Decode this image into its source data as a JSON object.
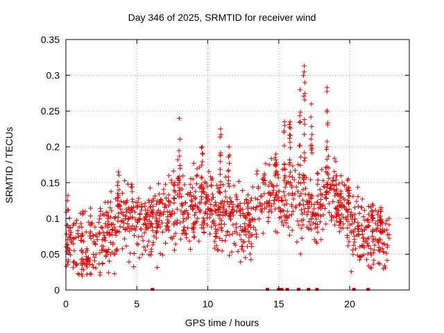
{
  "chart_data": {
    "type": "scatter",
    "title": "Day 346 of 2025, SRMTID for receiver wind",
    "xlabel": "GPS time / hours",
    "ylabel": "SRMTID / TECUs",
    "xlim": [
      0,
      24.2
    ],
    "ylim": [
      0,
      0.35
    ],
    "xticks": [
      0,
      5,
      10,
      15,
      20
    ],
    "yticks": [
      0,
      0.05,
      0.1,
      0.15,
      0.2,
      0.25,
      0.3,
      0.35
    ],
    "xtick_labels": [
      "0",
      "5",
      "10",
      "15",
      "20"
    ],
    "ytick_labels": [
      "0",
      "0.05",
      "0.1",
      "0.15",
      "0.2",
      "0.25",
      "0.3",
      "0.35"
    ],
    "grid": true,
    "marker": "+",
    "color": "#dd0000",
    "trend": {
      "x": [
        0,
        0.5,
        1,
        1.5,
        2,
        2.5,
        3,
        3.5,
        4,
        4.5,
        5,
        5.5,
        6,
        6.5,
        7,
        7.5,
        8,
        8.5,
        9,
        9.5,
        10,
        10.5,
        11,
        11.5,
        12,
        12.5,
        13,
        13.5,
        14,
        14.5,
        15,
        15.5,
        16,
        16.5,
        17,
        17.5,
        18,
        18.5,
        19,
        19.5,
        20,
        20.5,
        21,
        21.5,
        22,
        22.5,
        22.8
      ],
      "y": [
        0.085,
        0.07,
        0.06,
        0.055,
        0.065,
        0.07,
        0.075,
        0.09,
        0.11,
        0.1,
        0.09,
        0.095,
        0.085,
        0.1,
        0.1,
        0.11,
        0.125,
        0.11,
        0.115,
        0.12,
        0.125,
        0.1,
        0.11,
        0.105,
        0.095,
        0.08,
        0.1,
        0.12,
        0.125,
        0.13,
        0.115,
        0.12,
        0.13,
        0.115,
        0.12,
        0.105,
        0.125,
        0.14,
        0.13,
        0.11,
        0.1,
        0.085,
        0.08,
        0.075,
        0.07,
        0.065,
        0.06
      ],
      "spread": 0.025
    },
    "spikes": [
      {
        "x": 3.7,
        "y_max": 0.165
      },
      {
        "x": 8.0,
        "y_max": 0.24
      },
      {
        "x": 9.6,
        "y_max": 0.2
      },
      {
        "x": 10.9,
        "y_max": 0.225
      },
      {
        "x": 11.5,
        "y_max": 0.2
      },
      {
        "x": 14.8,
        "y_max": 0.19
      },
      {
        "x": 15.4,
        "y_max": 0.235
      },
      {
        "x": 15.8,
        "y_max": 0.235
      },
      {
        "x": 16.5,
        "y_max": 0.28
      },
      {
        "x": 16.8,
        "y_max": 0.313
      },
      {
        "x": 17.3,
        "y_max": 0.26
      },
      {
        "x": 18.4,
        "y_max": 0.283
      },
      {
        "x": 19.9,
        "y_max": 0.155
      },
      {
        "x": 21.6,
        "y_max": 0.12
      },
      {
        "x": 22.2,
        "y_max": 0.115
      }
    ],
    "zero_values_x": [
      6.1,
      14.2,
      15.0,
      15.2,
      15.6,
      16.4,
      17.1,
      17.7,
      20.3,
      21.3
    ]
  }
}
